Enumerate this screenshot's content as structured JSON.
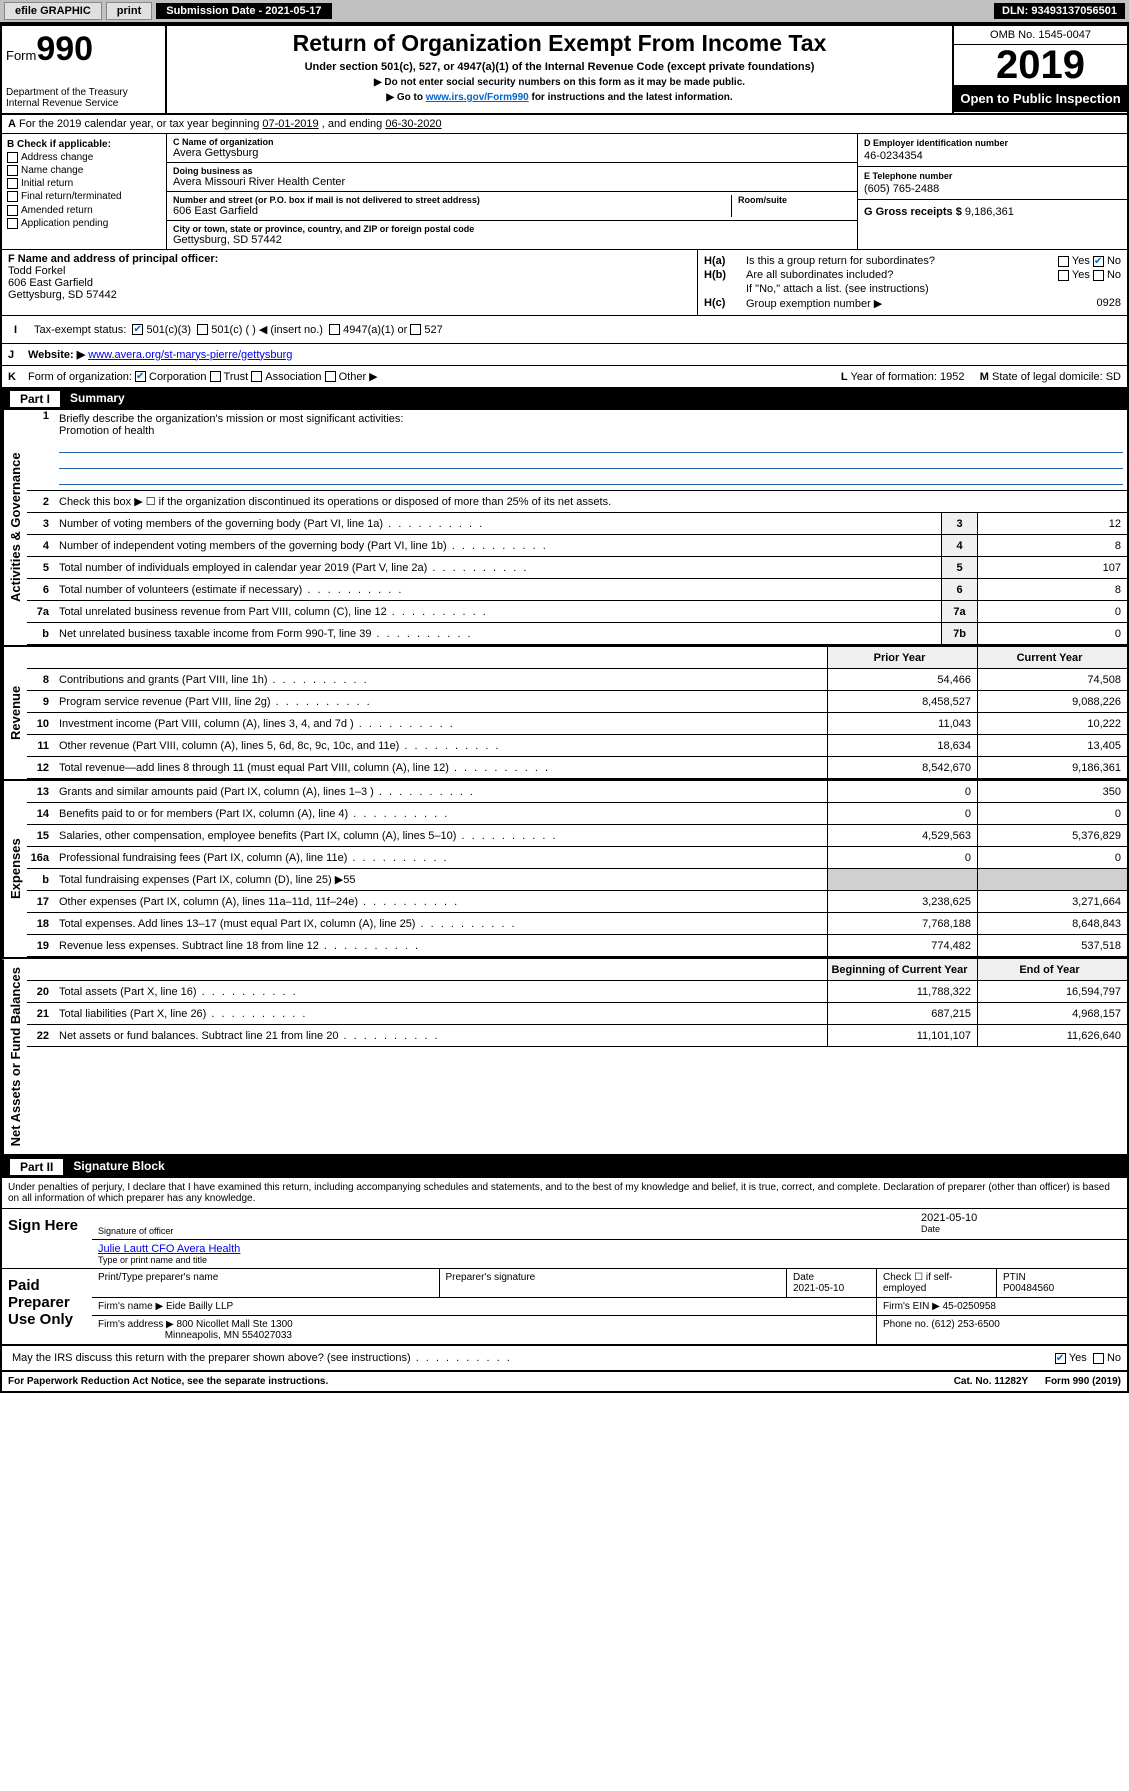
{
  "topbar": {
    "efile": "efile GRAPHIC",
    "print": "print",
    "subdate_label": "Submission Date - 2021-05-17",
    "dln": "DLN: 93493137056501"
  },
  "header": {
    "form_label": "Form",
    "form_num": "990",
    "dept": "Department of the Treasury",
    "irs": "Internal Revenue Service",
    "title": "Return of Organization Exempt From Income Tax",
    "sub1": "Under section 501(c), 527, or 4947(a)(1) of the Internal Revenue Code (except private foundations)",
    "sub2": "▶ Do not enter social security numbers on this form as it may be made public.",
    "sub3_pre": "▶ Go to ",
    "sub3_link": "www.irs.gov/Form990",
    "sub3_post": " for instructions and the latest information.",
    "omb": "OMB No. 1545-0047",
    "year": "2019",
    "open_pub": "Open to Public Inspection"
  },
  "row_a": {
    "text": "For the 2019 calendar year, or tax year beginning ",
    "begin": "07-01-2019",
    "mid": " , and ending ",
    "end": "06-30-2020"
  },
  "col_b": {
    "label": "B Check if applicable:",
    "opts": [
      "Address change",
      "Name change",
      "Initial return",
      "Final return/terminated",
      "Amended return",
      "Application pending"
    ]
  },
  "col_c": {
    "name_label": "C Name of organization",
    "name": "Avera Gettysburg",
    "dba_label": "Doing business as",
    "dba": "Avera Missouri River Health Center",
    "addr_label": "Number and street (or P.O. box if mail is not delivered to street address)",
    "room_label": "Room/suite",
    "addr": "606 East Garfield",
    "city_label": "City or town, state or province, country, and ZIP or foreign postal code",
    "city": "Gettysburg, SD  57442"
  },
  "col_d": {
    "ein_label": "D Employer identification number",
    "ein": "46-0234354"
  },
  "col_e": {
    "tel_label": "E Telephone number",
    "tel": "(605) 765-2488",
    "gross_label": "G Gross receipts $",
    "gross": "9,186,361"
  },
  "col_f": {
    "label": "F  Name and address of principal officer:",
    "name": "Todd Forkel",
    "addr1": "606 East Garfield",
    "addr2": "Gettysburg, SD  57442"
  },
  "col_h": {
    "a_label": "H(a)",
    "a_text": "Is this a group return for subordinates?",
    "b_label": "H(b)",
    "b_text": "Are all subordinates included?",
    "b_note": "If \"No,\" attach a list. (see instructions)",
    "c_label": "H(c)",
    "c_text": "Group exemption number ▶",
    "c_val": "0928",
    "yes": "Yes",
    "no": "No"
  },
  "row_i": {
    "label": "I",
    "text": "Tax-exempt status:",
    "opts": [
      "501(c)(3)",
      "501(c) (  ) ◀ (insert no.)",
      "4947(a)(1) or",
      "527"
    ]
  },
  "row_j": {
    "label": "J",
    "text": "Website: ▶",
    "val": "www.avera.org/st-marys-pierre/gettysburg"
  },
  "row_k": {
    "label": "K",
    "text": "Form of organization:",
    "opts": [
      "Corporation",
      "Trust",
      "Association",
      "Other ▶"
    ],
    "l_label": "L",
    "l_text": "Year of formation:",
    "l_val": "1952",
    "m_label": "M",
    "m_text": "State of legal domicile:",
    "m_val": "SD"
  },
  "part1": {
    "num": "Part I",
    "title": "Summary"
  },
  "sections": [
    {
      "label": "Activities & Governance",
      "lines": [
        {
          "num": "1",
          "txt": "Briefly describe the organization's mission or most significant activities:",
          "mission": "Promotion of health"
        },
        {
          "num": "2",
          "txt": "Check this box ▶ ☐ if the organization discontinued its operations or disposed of more than 25% of its net assets."
        },
        {
          "num": "3",
          "txt": "Number of voting members of the governing body (Part VI, line 1a)",
          "box": "3",
          "v2": "12"
        },
        {
          "num": "4",
          "txt": "Number of independent voting members of the governing body (Part VI, line 1b)",
          "box": "4",
          "v2": "8"
        },
        {
          "num": "5",
          "txt": "Total number of individuals employed in calendar year 2019 (Part V, line 2a)",
          "box": "5",
          "v2": "107"
        },
        {
          "num": "6",
          "txt": "Total number of volunteers (estimate if necessary)",
          "box": "6",
          "v2": "8"
        },
        {
          "num": "7a",
          "txt": "Total unrelated business revenue from Part VIII, column (C), line 12",
          "box": "7a",
          "v2": "0"
        },
        {
          "num": "b",
          "txt": "Net unrelated business taxable income from Form 990-T, line 39",
          "box": "7b",
          "v2": "0"
        }
      ]
    },
    {
      "label": "Revenue",
      "header": {
        "c1": "Prior Year",
        "c2": "Current Year"
      },
      "lines": [
        {
          "num": "8",
          "txt": "Contributions and grants (Part VIII, line 1h)",
          "v1": "54,466",
          "v2": "74,508"
        },
        {
          "num": "9",
          "txt": "Program service revenue (Part VIII, line 2g)",
          "v1": "8,458,527",
          "v2": "9,088,226"
        },
        {
          "num": "10",
          "txt": "Investment income (Part VIII, column (A), lines 3, 4, and 7d )",
          "v1": "11,043",
          "v2": "10,222"
        },
        {
          "num": "11",
          "txt": "Other revenue (Part VIII, column (A), lines 5, 6d, 8c, 9c, 10c, and 11e)",
          "v1": "18,634",
          "v2": "13,405"
        },
        {
          "num": "12",
          "txt": "Total revenue—add lines 8 through 11 (must equal Part VIII, column (A), line 12)",
          "v1": "8,542,670",
          "v2": "9,186,361"
        }
      ]
    },
    {
      "label": "Expenses",
      "lines": [
        {
          "num": "13",
          "txt": "Grants and similar amounts paid (Part IX, column (A), lines 1–3 )",
          "v1": "0",
          "v2": "350"
        },
        {
          "num": "14",
          "txt": "Benefits paid to or for members (Part IX, column (A), line 4)",
          "v1": "0",
          "v2": "0"
        },
        {
          "num": "15",
          "txt": "Salaries, other compensation, employee benefits (Part IX, column (A), lines 5–10)",
          "v1": "4,529,563",
          "v2": "5,376,829"
        },
        {
          "num": "16a",
          "txt": "Professional fundraising fees (Part IX, column (A), line 11e)",
          "v1": "0",
          "v2": "0"
        },
        {
          "num": "b",
          "txt": "Total fundraising expenses (Part IX, column (D), line 25) ▶55",
          "shade2": true
        },
        {
          "num": "17",
          "txt": "Other expenses (Part IX, column (A), lines 11a–11d, 11f–24e)",
          "v1": "3,238,625",
          "v2": "3,271,664"
        },
        {
          "num": "18",
          "txt": "Total expenses. Add lines 13–17 (must equal Part IX, column (A), line 25)",
          "v1": "7,768,188",
          "v2": "8,648,843"
        },
        {
          "num": "19",
          "txt": "Revenue less expenses. Subtract line 18 from line 12",
          "v1": "774,482",
          "v2": "537,518"
        }
      ]
    },
    {
      "label": "Net Assets or Fund Balances",
      "header": {
        "c1": "Beginning of Current Year",
        "c2": "End of Year"
      },
      "lines": [
        {
          "num": "20",
          "txt": "Total assets (Part X, line 16)",
          "v1": "11,788,322",
          "v2": "16,594,797"
        },
        {
          "num": "21",
          "txt": "Total liabilities (Part X, line 26)",
          "v1": "687,215",
          "v2": "4,968,157"
        },
        {
          "num": "22",
          "txt": "Net assets or fund balances. Subtract line 21 from line 20",
          "v1": "11,101,107",
          "v2": "11,626,640"
        }
      ]
    }
  ],
  "part2": {
    "num": "Part II",
    "title": "Signature Block",
    "perjury": "Under penalties of perjury, I declare that I have examined this return, including accompanying schedules and statements, and to the best of my knowledge and belief, it is true, correct, and complete. Declaration of preparer (other than officer) is based on all information of which preparer has any knowledge."
  },
  "sign": {
    "here": "Sign Here",
    "sig_label": "Signature of officer",
    "date": "2021-05-10",
    "date_label": "Date",
    "name": "Julie Lautt CFO Avera Health",
    "name_label": "Type or print name and title"
  },
  "paid": {
    "title": "Paid Preparer Use Only",
    "h1": "Print/Type preparer's name",
    "h2": "Preparer's signature",
    "h3": "Date",
    "h3v": "2021-05-10",
    "h4": "Check ☐ if self-employed",
    "h5": "PTIN",
    "h5v": "P00484560",
    "firm_label": "Firm's name    ▶",
    "firm": "Eide Bailly LLP",
    "ein_label": "Firm's EIN ▶",
    "ein": "45-0250958",
    "addr_label": "Firm's address ▶",
    "addr1": "800 Nicollet Mall Ste 1300",
    "addr2": "Minneapolis, MN  554027033",
    "phone_label": "Phone no.",
    "phone": "(612) 253-6500"
  },
  "discuss": {
    "text": "May the IRS discuss this return with the preparer shown above? (see instructions)",
    "yes": "Yes",
    "no": "No"
  },
  "footer": {
    "left": "For Paperwork Reduction Act Notice, see the separate instructions.",
    "mid": "Cat. No. 11282Y",
    "right": "Form 990 (2019)"
  }
}
